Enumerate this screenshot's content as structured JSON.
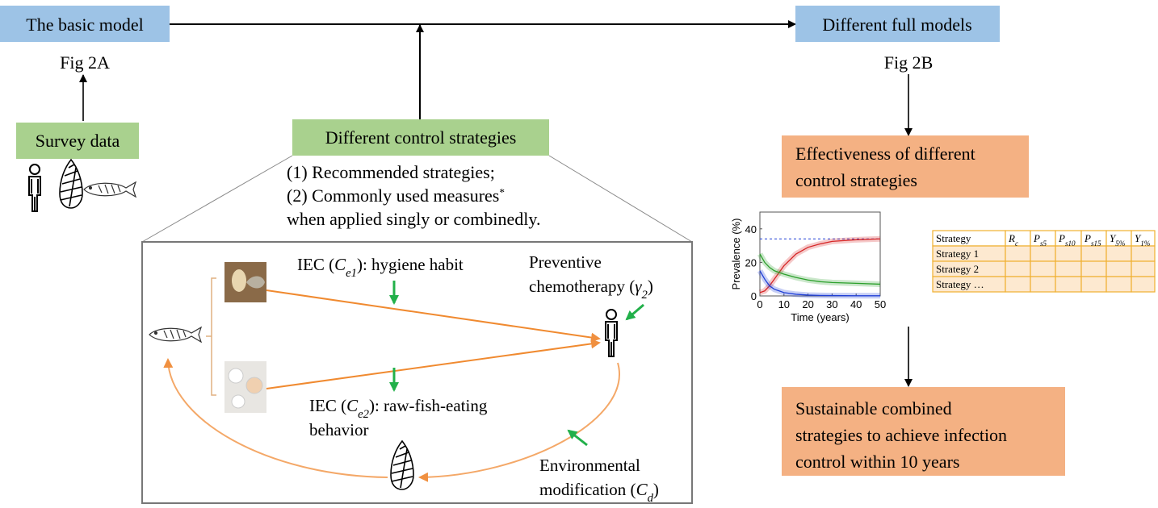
{
  "header_boxes": {
    "basic_model": "The basic model",
    "full_models": "Different full models"
  },
  "figure_refs": {
    "basic": "Fig 2A",
    "full": "Fig 2B"
  },
  "survey": "Survey data",
  "control": {
    "title": "Different control strategies",
    "notes": [
      [
        {
          "text": "(1) Recommended strategies;"
        }
      ],
      [
        {
          "text": "(2) Commonly used measures"
        },
        {
          "text": "*",
          "style": "sup"
        }
      ],
      [
        {
          "text": "when applied singly or combinedly."
        }
      ]
    ]
  },
  "interventions": {
    "hygiene": [
      [
        {
          "text": "IEC ("
        },
        {
          "text": "C",
          "style": "italic"
        },
        {
          "text": "e1",
          "style": "sub"
        },
        {
          "text": "): hygiene habit"
        }
      ]
    ],
    "raw_fish": [
      [
        {
          "text": "IEC ("
        },
        {
          "text": "C",
          "style": "italic"
        },
        {
          "text": "e2",
          "style": "sub"
        },
        {
          "text": "): raw-fish-eating"
        }
      ],
      [
        {
          "text": "behavior"
        }
      ]
    ],
    "chemo": [
      [
        {
          "text": "Preventive"
        }
      ],
      [
        {
          "text": "chemotherapy ("
        },
        {
          "text": "γ",
          "style": "italic"
        },
        {
          "text": "2",
          "style": "sub"
        },
        {
          "text": ")"
        }
      ]
    ],
    "environment": [
      [
        {
          "text": "Environmental"
        }
      ],
      [
        {
          "text": "modification ("
        },
        {
          "text": "C",
          "style": "italic"
        },
        {
          "text": "d",
          "style": "sub"
        },
        {
          "text": ")"
        }
      ]
    ]
  },
  "results": {
    "effectiveness": [
      "Effectiveness of different",
      "control strategies"
    ],
    "sustainable": [
      "Sustainable combined",
      "strategies to achieve infection",
      "control within 10 years"
    ]
  },
  "chart_data": {
    "type": "line",
    "xlabel": "Time (years)",
    "ylabel": "Prevalence (%)",
    "x": [
      0,
      2,
      4,
      6,
      8,
      10,
      15,
      20,
      25,
      30,
      40,
      50
    ],
    "series": [
      {
        "color": "#d62728",
        "values": [
          2,
          3,
          6,
          10,
          14,
          18,
          25,
          29,
          31,
          32.5,
          33.5,
          34
        ]
      },
      {
        "color": "#2ca02c",
        "values": [
          25,
          20,
          17,
          15,
          14,
          13,
          11,
          9.5,
          8.5,
          8,
          7.5,
          7
        ]
      },
      {
        "color": "#1f3fd6",
        "values": [
          15,
          10,
          6,
          4,
          3,
          2,
          1,
          0.5,
          0.3,
          0.2,
          0.1,
          0.1
        ]
      }
    ],
    "reference": 34,
    "xlim": [
      0,
      50
    ],
    "xticks": [
      0,
      10,
      20,
      30,
      40,
      50
    ],
    "ylim": [
      0,
      50
    ],
    "yticks": [
      0,
      20,
      40
    ]
  },
  "table": {
    "header": [
      [
        {
          "text": "Strategy"
        }
      ],
      [
        {
          "text": "R",
          "style": "italic"
        },
        {
          "text": "c",
          "style": "sub"
        }
      ],
      [
        {
          "text": "P",
          "style": "italic"
        },
        {
          "text": "s5",
          "style": "sub"
        }
      ],
      [
        {
          "text": "P",
          "style": "italic"
        },
        {
          "text": "s10",
          "style": "sub"
        }
      ],
      [
        {
          "text": "P",
          "style": "italic"
        },
        {
          "text": "s15",
          "style": "sub"
        }
      ],
      [
        {
          "text": "Y",
          "style": "italic"
        },
        {
          "text": "5%",
          "style": "sub"
        }
      ],
      [
        {
          "text": "Y",
          "style": "italic"
        },
        {
          "text": "1%",
          "style": "sub"
        }
      ]
    ],
    "rows": [
      "Strategy 1",
      "Strategy 2",
      "Strategy …"
    ]
  }
}
